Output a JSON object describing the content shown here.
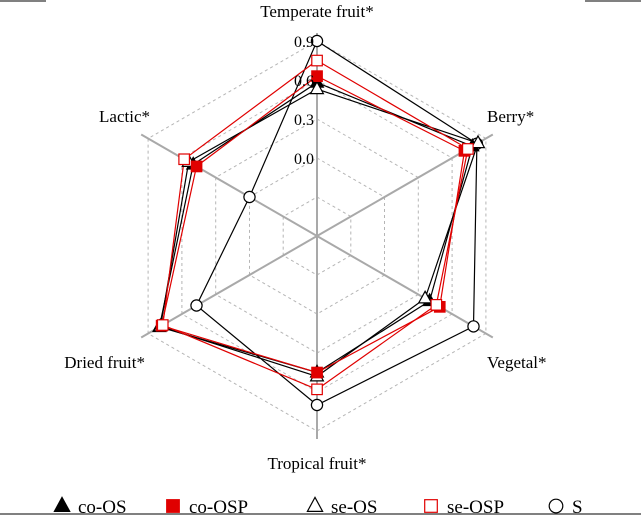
{
  "chart_data": {
    "type": "radar",
    "axes": [
      "Temperate fruit*",
      "Berry*",
      "Vegetal*",
      "Tropical fruit*",
      "Dried fruit*",
      "Lactic*"
    ],
    "ticks": [
      "0.0",
      "0.3",
      "0.6",
      "0.9"
    ],
    "tick_values": [
      0.0,
      0.3,
      0.6,
      0.9
    ],
    "rlim": [
      -0.6,
      0.9
    ],
    "grid": true,
    "legend_position": "bottom",
    "series": [
      {
        "name": "co-OS",
        "color": "#000000",
        "marker": "filled-triangle",
        "values": [
          0.58,
          0.78,
          0.4,
          0.45,
          0.8,
          0.5
        ]
      },
      {
        "name": "co-OSP",
        "color": "#e00000",
        "marker": "filled-square",
        "values": [
          0.63,
          0.71,
          0.49,
          0.45,
          0.78,
          0.47
        ]
      },
      {
        "name": "se-OS",
        "color": "#000000",
        "marker": "open-triangle",
        "values": [
          0.53,
          0.83,
          0.36,
          0.48,
          0.79,
          0.54
        ]
      },
      {
        "name": "se-OSP",
        "color": "#e00000",
        "marker": "open-square",
        "values": [
          0.75,
          0.74,
          0.46,
          0.58,
          0.77,
          0.58
        ]
      },
      {
        "name": "S",
        "color": "#000000",
        "marker": "open-circle",
        "values": [
          0.9,
          0.82,
          0.79,
          0.7,
          0.47,
          0.0
        ]
      }
    ]
  }
}
